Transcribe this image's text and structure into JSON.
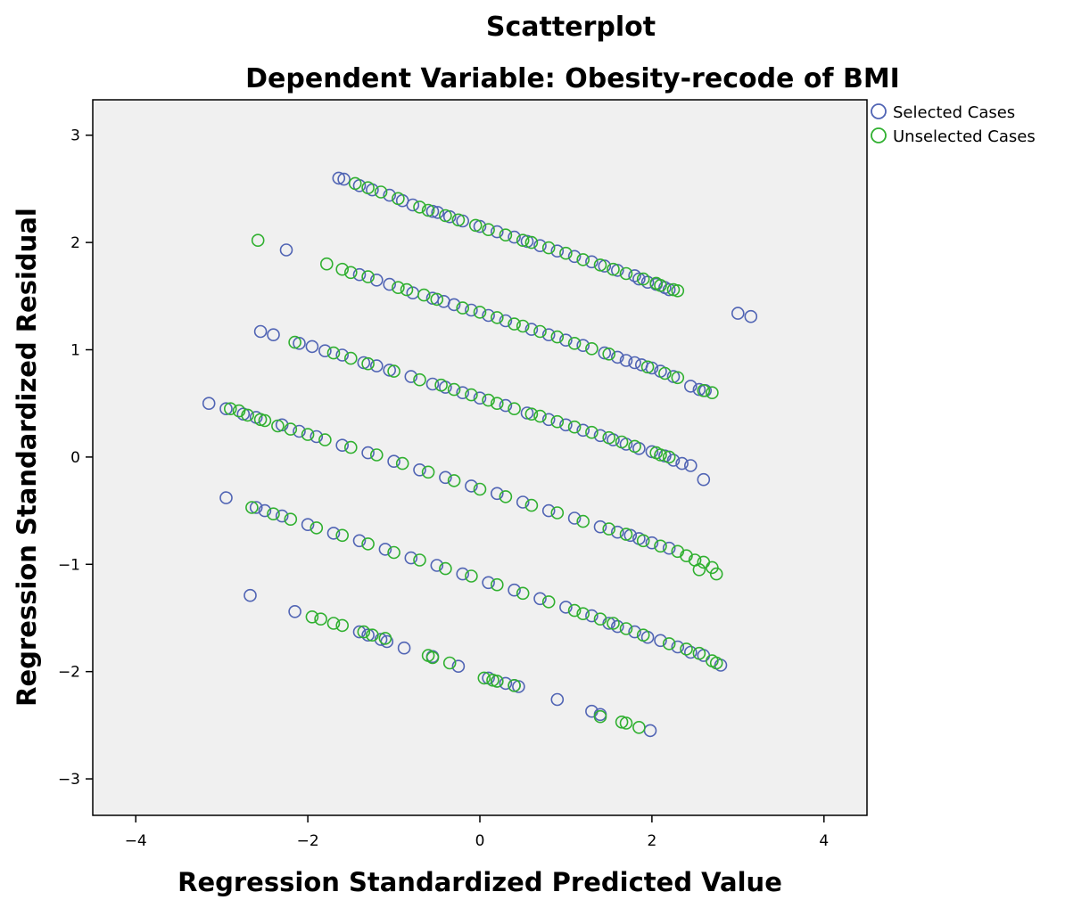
{
  "chart_data": {
    "type": "scatter",
    "title": "Scatterplot",
    "subtitle": "Dependent Variable: Obesity-recode of BMI",
    "xlabel": "Regression Standardized Predicted Value",
    "ylabel": "Regression Standardized Residual",
    "xlim": [
      -4.5,
      4.5
    ],
    "ylim": [
      -3.34,
      3.33
    ],
    "x_ticks": [
      -4,
      -2,
      0,
      2,
      4
    ],
    "x_tick_labels": [
      "−4",
      "−2",
      "0",
      "2",
      "4"
    ],
    "y_ticks": [
      -3,
      -2,
      -1,
      0,
      1,
      2,
      3
    ],
    "y_tick_labels": [
      "−3",
      "−2",
      "−1",
      "0",
      "1",
      "2",
      "3"
    ],
    "grid": false,
    "legend_position": "top-right",
    "plot_background": "#f0f0f0",
    "series": [
      {
        "name": "Selected Cases",
        "color": "#5064b4",
        "points": [
          [
            -1.64,
            2.6
          ],
          [
            -1.58,
            2.59
          ],
          [
            -1.4,
            2.53
          ],
          [
            -1.25,
            2.49
          ],
          [
            -1.05,
            2.44
          ],
          [
            -0.9,
            2.39
          ],
          [
            -0.78,
            2.35
          ],
          [
            -0.55,
            2.29
          ],
          [
            -0.49,
            2.28
          ],
          [
            -0.35,
            2.24
          ],
          [
            -0.2,
            2.2
          ],
          [
            0.0,
            2.15
          ],
          [
            0.2,
            2.1
          ],
          [
            0.4,
            2.05
          ],
          [
            0.55,
            2.01
          ],
          [
            0.7,
            1.97
          ],
          [
            0.9,
            1.92
          ],
          [
            1.1,
            1.87
          ],
          [
            1.3,
            1.82
          ],
          [
            1.45,
            1.78
          ],
          [
            1.6,
            1.74
          ],
          [
            1.8,
            1.69
          ],
          [
            1.85,
            1.66
          ],
          [
            1.95,
            1.63
          ],
          [
            2.05,
            1.61
          ],
          [
            2.15,
            1.58
          ],
          [
            2.2,
            1.56
          ],
          [
            3.0,
            1.34
          ],
          [
            3.15,
            1.31
          ],
          [
            -2.25,
            1.93
          ],
          [
            -1.4,
            1.7
          ],
          [
            -1.2,
            1.65
          ],
          [
            -1.05,
            1.61
          ],
          [
            -0.78,
            1.53
          ],
          [
            -0.55,
            1.48
          ],
          [
            -0.42,
            1.45
          ],
          [
            -0.3,
            1.42
          ],
          [
            -0.1,
            1.37
          ],
          [
            0.1,
            1.32
          ],
          [
            0.3,
            1.27
          ],
          [
            0.6,
            1.19
          ],
          [
            0.8,
            1.14
          ],
          [
            1.0,
            1.09
          ],
          [
            1.2,
            1.04
          ],
          [
            1.45,
            0.97
          ],
          [
            1.6,
            0.93
          ],
          [
            1.7,
            0.9
          ],
          [
            1.8,
            0.88
          ],
          [
            1.88,
            0.86
          ],
          [
            2.0,
            0.83
          ],
          [
            2.1,
            0.8
          ],
          [
            2.25,
            0.75
          ],
          [
            2.45,
            0.66
          ],
          [
            2.55,
            0.63
          ],
          [
            2.62,
            0.62
          ],
          [
            -2.55,
            1.17
          ],
          [
            -2.4,
            1.14
          ],
          [
            -2.1,
            1.06
          ],
          [
            -1.95,
            1.03
          ],
          [
            -1.8,
            0.99
          ],
          [
            -1.6,
            0.95
          ],
          [
            -1.35,
            0.88
          ],
          [
            -1.2,
            0.85
          ],
          [
            -1.05,
            0.81
          ],
          [
            -0.8,
            0.75
          ],
          [
            -0.55,
            0.68
          ],
          [
            -0.4,
            0.65
          ],
          [
            -0.2,
            0.6
          ],
          [
            0.0,
            0.55
          ],
          [
            0.3,
            0.48
          ],
          [
            0.55,
            0.41
          ],
          [
            0.8,
            0.35
          ],
          [
            1.0,
            0.3
          ],
          [
            1.2,
            0.25
          ],
          [
            1.4,
            0.2
          ],
          [
            1.55,
            0.16
          ],
          [
            1.7,
            0.12
          ],
          [
            1.85,
            0.08
          ],
          [
            2.0,
            0.05
          ],
          [
            2.15,
            0.01
          ],
          [
            2.25,
            -0.03
          ],
          [
            2.35,
            -0.06
          ],
          [
            2.45,
            -0.08
          ],
          [
            2.6,
            -0.21
          ],
          [
            -3.15,
            0.5
          ],
          [
            -2.95,
            0.45
          ],
          [
            -2.75,
            0.4
          ],
          [
            -2.6,
            0.37
          ],
          [
            -2.3,
            0.3
          ],
          [
            -2.1,
            0.24
          ],
          [
            -1.9,
            0.19
          ],
          [
            -1.6,
            0.11
          ],
          [
            -1.3,
            0.04
          ],
          [
            -1.0,
            -0.04
          ],
          [
            -0.7,
            -0.12
          ],
          [
            -0.4,
            -0.19
          ],
          [
            -0.1,
            -0.27
          ],
          [
            0.2,
            -0.34
          ],
          [
            0.5,
            -0.42
          ],
          [
            0.8,
            -0.5
          ],
          [
            1.1,
            -0.57
          ],
          [
            1.4,
            -0.65
          ],
          [
            1.6,
            -0.7
          ],
          [
            1.75,
            -0.73
          ],
          [
            1.85,
            -0.76
          ],
          [
            2.0,
            -0.8
          ],
          [
            2.2,
            -0.85
          ],
          [
            -2.95,
            -0.38
          ],
          [
            -2.6,
            -0.47
          ],
          [
            -2.5,
            -0.5
          ],
          [
            -2.3,
            -0.55
          ],
          [
            -2.0,
            -0.63
          ],
          [
            -1.7,
            -0.71
          ],
          [
            -1.4,
            -0.78
          ],
          [
            -1.1,
            -0.86
          ],
          [
            -0.8,
            -0.94
          ],
          [
            -0.5,
            -1.01
          ],
          [
            -0.2,
            -1.09
          ],
          [
            0.1,
            -1.17
          ],
          [
            0.4,
            -1.24
          ],
          [
            0.7,
            -1.32
          ],
          [
            1.0,
            -1.4
          ],
          [
            1.3,
            -1.48
          ],
          [
            1.5,
            -1.55
          ],
          [
            1.6,
            -1.58
          ],
          [
            1.8,
            -1.63
          ],
          [
            1.95,
            -1.68
          ],
          [
            2.1,
            -1.71
          ],
          [
            2.3,
            -1.77
          ],
          [
            2.45,
            -1.82
          ],
          [
            2.6,
            -1.85
          ],
          [
            2.8,
            -1.94
          ],
          [
            -2.67,
            -1.29
          ],
          [
            -2.15,
            -1.44
          ],
          [
            -1.4,
            -1.63
          ],
          [
            -1.3,
            -1.66
          ],
          [
            -1.15,
            -1.7
          ],
          [
            -1.08,
            -1.72
          ],
          [
            -0.88,
            -1.78
          ],
          [
            -0.55,
            -1.86
          ],
          [
            -0.25,
            -1.95
          ],
          [
            0.1,
            -2.06
          ],
          [
            0.2,
            -2.09
          ],
          [
            0.3,
            -2.11
          ],
          [
            0.4,
            -2.13
          ],
          [
            0.45,
            -2.14
          ],
          [
            0.9,
            -2.26
          ],
          [
            1.3,
            -2.37
          ],
          [
            1.4,
            -2.4
          ],
          [
            1.98,
            -2.55
          ]
        ]
      },
      {
        "name": "Unselected Cases",
        "color": "#30b030",
        "points": [
          [
            -1.45,
            2.55
          ],
          [
            -1.3,
            2.51
          ],
          [
            -1.15,
            2.47
          ],
          [
            -0.95,
            2.41
          ],
          [
            -0.7,
            2.33
          ],
          [
            -0.6,
            2.3
          ],
          [
            -0.4,
            2.25
          ],
          [
            -0.25,
            2.21
          ],
          [
            -0.05,
            2.16
          ],
          [
            0.1,
            2.12
          ],
          [
            0.3,
            2.07
          ],
          [
            0.5,
            2.02
          ],
          [
            0.6,
            2.0
          ],
          [
            0.8,
            1.95
          ],
          [
            1.0,
            1.9
          ],
          [
            1.2,
            1.84
          ],
          [
            1.4,
            1.79
          ],
          [
            1.55,
            1.75
          ],
          [
            1.7,
            1.71
          ],
          [
            1.9,
            1.66
          ],
          [
            2.05,
            1.62
          ],
          [
            2.1,
            1.6
          ],
          [
            2.3,
            1.55
          ],
          [
            2.25,
            1.56
          ],
          [
            -2.58,
            2.02
          ],
          [
            -1.78,
            1.8
          ],
          [
            -1.6,
            1.75
          ],
          [
            -1.5,
            1.72
          ],
          [
            -1.3,
            1.68
          ],
          [
            -0.95,
            1.58
          ],
          [
            -0.85,
            1.56
          ],
          [
            -0.65,
            1.51
          ],
          [
            -0.5,
            1.47
          ],
          [
            -0.2,
            1.39
          ],
          [
            0.0,
            1.35
          ],
          [
            0.2,
            1.3
          ],
          [
            0.4,
            1.24
          ],
          [
            0.5,
            1.22
          ],
          [
            0.7,
            1.17
          ],
          [
            0.9,
            1.12
          ],
          [
            1.1,
            1.06
          ],
          [
            1.3,
            1.01
          ],
          [
            1.5,
            0.96
          ],
          [
            1.95,
            0.84
          ],
          [
            2.15,
            0.78
          ],
          [
            2.3,
            0.74
          ],
          [
            2.6,
            0.62
          ],
          [
            2.7,
            0.6
          ],
          [
            -2.15,
            1.07
          ],
          [
            -1.7,
            0.97
          ],
          [
            -1.5,
            0.92
          ],
          [
            -1.3,
            0.87
          ],
          [
            -1.0,
            0.8
          ],
          [
            -0.7,
            0.72
          ],
          [
            -0.45,
            0.67
          ],
          [
            -0.3,
            0.63
          ],
          [
            -0.1,
            0.58
          ],
          [
            0.1,
            0.53
          ],
          [
            0.2,
            0.5
          ],
          [
            0.4,
            0.45
          ],
          [
            0.6,
            0.4
          ],
          [
            0.7,
            0.38
          ],
          [
            0.9,
            0.33
          ],
          [
            1.1,
            0.28
          ],
          [
            1.3,
            0.23
          ],
          [
            1.5,
            0.18
          ],
          [
            1.65,
            0.14
          ],
          [
            1.8,
            0.1
          ],
          [
            2.05,
            0.04
          ],
          [
            2.1,
            0.02
          ],
          [
            2.2,
            0.0
          ],
          [
            -2.9,
            0.45
          ],
          [
            -2.8,
            0.43
          ],
          [
            -2.7,
            0.39
          ],
          [
            -2.55,
            0.35
          ],
          [
            -2.5,
            0.34
          ],
          [
            -2.35,
            0.29
          ],
          [
            -2.2,
            0.26
          ],
          [
            -2.0,
            0.21
          ],
          [
            -1.8,
            0.16
          ],
          [
            -1.5,
            0.09
          ],
          [
            -1.2,
            0.02
          ],
          [
            -0.9,
            -0.06
          ],
          [
            -0.6,
            -0.14
          ],
          [
            -0.3,
            -0.22
          ],
          [
            0.0,
            -0.3
          ],
          [
            0.3,
            -0.37
          ],
          [
            0.6,
            -0.45
          ],
          [
            0.9,
            -0.52
          ],
          [
            1.2,
            -0.6
          ],
          [
            1.5,
            -0.67
          ],
          [
            1.7,
            -0.72
          ],
          [
            1.9,
            -0.78
          ],
          [
            2.1,
            -0.83
          ],
          [
            2.3,
            -0.88
          ],
          [
            2.4,
            -0.92
          ],
          [
            2.5,
            -0.96
          ],
          [
            2.6,
            -0.98
          ],
          [
            2.7,
            -1.03
          ],
          [
            2.55,
            -1.05
          ],
          [
            2.75,
            -1.09
          ],
          [
            -2.65,
            -0.47
          ],
          [
            -2.4,
            -0.53
          ],
          [
            -2.2,
            -0.58
          ],
          [
            -1.9,
            -0.66
          ],
          [
            -1.6,
            -0.73
          ],
          [
            -1.3,
            -0.81
          ],
          [
            -1.0,
            -0.89
          ],
          [
            -0.7,
            -0.96
          ],
          [
            -0.4,
            -1.04
          ],
          [
            -0.1,
            -1.11
          ],
          [
            0.2,
            -1.19
          ],
          [
            0.5,
            -1.27
          ],
          [
            0.8,
            -1.35
          ],
          [
            1.1,
            -1.43
          ],
          [
            1.2,
            -1.46
          ],
          [
            1.4,
            -1.51
          ],
          [
            1.55,
            -1.55
          ],
          [
            1.7,
            -1.6
          ],
          [
            1.9,
            -1.66
          ],
          [
            2.2,
            -1.74
          ],
          [
            2.4,
            -1.79
          ],
          [
            2.55,
            -1.83
          ],
          [
            2.7,
            -1.9
          ],
          [
            2.75,
            -1.92
          ],
          [
            -1.95,
            -1.49
          ],
          [
            -1.85,
            -1.51
          ],
          [
            -1.7,
            -1.55
          ],
          [
            -1.6,
            -1.57
          ],
          [
            -1.35,
            -1.63
          ],
          [
            -1.25,
            -1.66
          ],
          [
            -1.1,
            -1.69
          ],
          [
            -0.6,
            -1.85
          ],
          [
            -0.55,
            -1.87
          ],
          [
            -0.35,
            -1.92
          ],
          [
            0.05,
            -2.06
          ],
          [
            0.15,
            -2.08
          ],
          [
            0.2,
            -2.09
          ],
          [
            0.4,
            -2.13
          ],
          [
            1.4,
            -2.42
          ],
          [
            1.65,
            -2.47
          ],
          [
            1.7,
            -2.48
          ],
          [
            1.85,
            -2.52
          ]
        ]
      }
    ]
  }
}
